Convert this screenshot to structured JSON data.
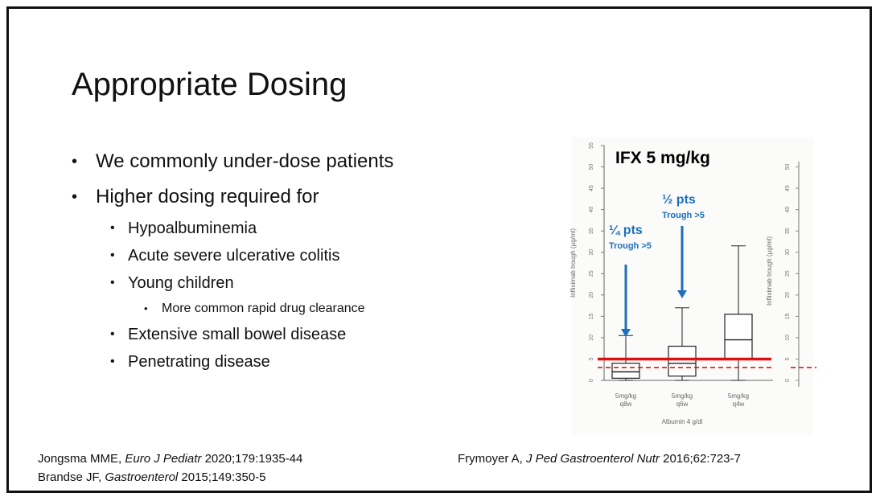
{
  "slide": {
    "title": "Appropriate Dosing",
    "bullets": [
      {
        "level": 1,
        "text": "We commonly under-dose patients"
      },
      {
        "level": 1,
        "text": "Higher dosing required for"
      },
      {
        "level": 2,
        "text": "Hypoalbuminemia"
      },
      {
        "level": 2,
        "text": "Acute severe ulcerative colitis"
      },
      {
        "level": 2,
        "text": "Young children"
      },
      {
        "level": 3,
        "text": "More common rapid drug clearance"
      },
      {
        "level": 2,
        "text": "Extensive small bowel disease"
      },
      {
        "level": 2,
        "text": "Penetrating disease"
      }
    ],
    "references_left": [
      {
        "pre": "Jongsma MME, ",
        "journal": "Euro J Pediatr",
        "post": " 2020;179:1935-44"
      },
      {
        "pre": "Brandse JF, ",
        "journal": "Gastroenterol",
        "post": " 2015;149:350-5"
      }
    ],
    "references_right": [
      {
        "pre": "Frymoyer A, ",
        "journal": "J Ped Gastroenterol Nutr",
        "post": " 2016;62:723-7"
      }
    ]
  },
  "chart_data": {
    "type": "box",
    "title": "IFX 5 mg/kg",
    "ylabel": "Infliximab trough (µg/ml)",
    "xlabel": "Albumin 4 g/dl",
    "ylim": [
      0,
      55
    ],
    "yticks": [
      0,
      5,
      10,
      15,
      20,
      25,
      30,
      35,
      40,
      45,
      50,
      55
    ],
    "categories": [
      "5mg/kg q8w",
      "5mg/kg q6w",
      "5mg/kg q4w"
    ],
    "boxes": [
      {
        "min": 0,
        "q1": 0.5,
        "median": 2,
        "q3": 4,
        "max": 10.5
      },
      {
        "min": 0,
        "q1": 1,
        "median": 4,
        "q3": 8,
        "max": 17
      },
      {
        "min": 0,
        "q1": 5,
        "median": 9.5,
        "q3": 15.5,
        "max": 31.5
      }
    ],
    "reference_lines": [
      {
        "value": 5,
        "style": "solid",
        "color": "#e01010"
      },
      {
        "value": 3,
        "style": "dashed",
        "color": "#e01010"
      }
    ],
    "annotations": [
      {
        "text": "¼ pts",
        "subtext": "Trough >5",
        "target_category": 0
      },
      {
        "text": "½ pts",
        "subtext": "Trough >5",
        "target_category": 1
      }
    ],
    "colors": {
      "accent": "#1c6fbf",
      "reference": "#e01010",
      "box": "#222222"
    }
  }
}
